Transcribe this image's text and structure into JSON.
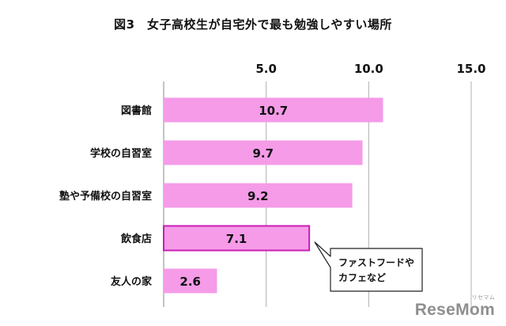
{
  "chart_data": {
    "type": "bar",
    "orientation": "horizontal",
    "title": "図3　女子高校生が自宅外で最も勉強しやすい場所",
    "categories": [
      "図書館",
      "学校の自習室",
      "塾や予備校の自習室",
      "飲食店",
      "友人の家"
    ],
    "values": [
      10.7,
      9.7,
      9.2,
      7.1,
      2.6
    ],
    "data_labels": [
      "10.7",
      "9.7",
      "9.2",
      "7.1",
      "2.6"
    ],
    "xlim": [
      0,
      15
    ],
    "xticks": [
      5.0,
      10.0,
      15.0
    ],
    "xtick_labels": [
      "5.0",
      "10.0",
      "15.0"
    ],
    "xaxis_position": "top",
    "grid": true,
    "highlighted_category": "飲食店",
    "annotation": {
      "target": "飲食店",
      "lines": [
        "ファストフードや",
        "カフェなど"
      ]
    },
    "colors": {
      "bar_fill": "#f59be8",
      "highlight_border": "#c81fb4",
      "grid": "#b0b0b0",
      "text": "#111111"
    }
  },
  "watermark": {
    "brand": "ReseMom",
    "sub": "リセマム"
  }
}
